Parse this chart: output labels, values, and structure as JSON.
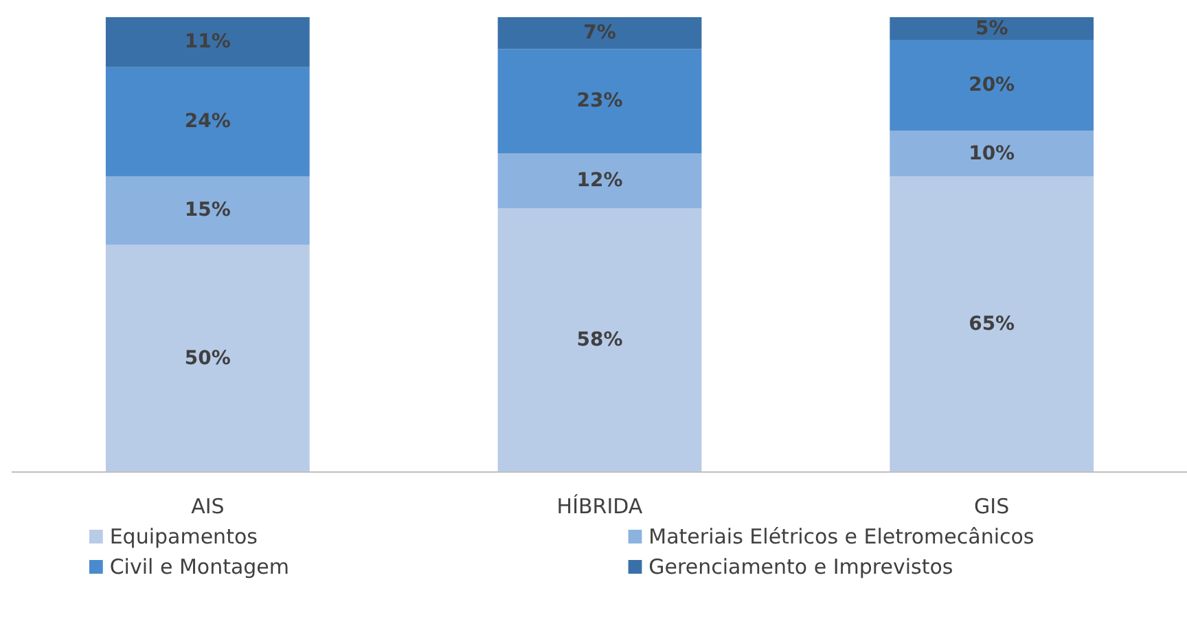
{
  "chart_data": {
    "type": "bar",
    "stacked": true,
    "data_labels": true,
    "legend": "bottom",
    "grid": false,
    "categories": [
      "AIS",
      "HÍBRIDA",
      "GIS"
    ],
    "series": [
      {
        "name": "Equipamentos",
        "color": "#b8cce8",
        "values": [
          50,
          58,
          65
        ],
        "value_labels": [
          "50%",
          "58%",
          "65%"
        ]
      },
      {
        "name": "Materiais Elétricos e Eletromecânicos",
        "color": "#8cb2e0",
        "values": [
          15,
          12,
          10
        ],
        "value_labels": [
          "15%",
          "12%",
          "10%"
        ]
      },
      {
        "name": "Civil e Montagem",
        "color": "#4a8bcd",
        "values": [
          24,
          23,
          20
        ],
        "value_labels": [
          "24%",
          "23%",
          "20%"
        ]
      },
      {
        "name": "Gerenciamento e Imprevistos",
        "color": "#3a70a8",
        "values": [
          11,
          7,
          5
        ],
        "value_labels": [
          "11%",
          "7%",
          "5%"
        ]
      }
    ]
  }
}
